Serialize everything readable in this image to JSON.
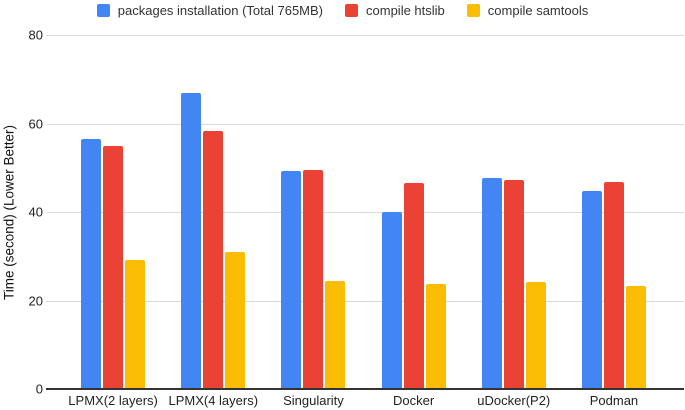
{
  "chart_data": {
    "type": "bar",
    "categories": [
      "LPMX(2 layers)",
      "LPMX(4 layers)",
      "Singularity",
      "Docker",
      "uDocker(P2)",
      "Podman"
    ],
    "series": [
      {
        "name": "packages installation (Total 765MB)",
        "color": "#4285F4",
        "values": [
          56.6,
          67.0,
          49.2,
          40.1,
          47.7,
          44.7
        ]
      },
      {
        "name": "compile htslib",
        "color": "#EA4335",
        "values": [
          55.0,
          58.4,
          49.5,
          46.5,
          47.2,
          46.7
        ]
      },
      {
        "name": "compile samtools",
        "color": "#FBBC04",
        "values": [
          29.2,
          30.9,
          24.4,
          23.8,
          24.1,
          23.2
        ]
      }
    ],
    "title": "",
    "xlabel": "",
    "ylabel": "Time (second) (Lower Better)",
    "ylim": [
      0,
      80
    ],
    "yticks": [
      0,
      20,
      40,
      60,
      80
    ],
    "grid": "horizontal",
    "legend_position": "top"
  },
  "colors": {
    "background": "#ffffff",
    "gridline": "#d9d9d9",
    "axis_line": "#333333",
    "tick_text": "#222222",
    "legend_text": "#333333"
  }
}
